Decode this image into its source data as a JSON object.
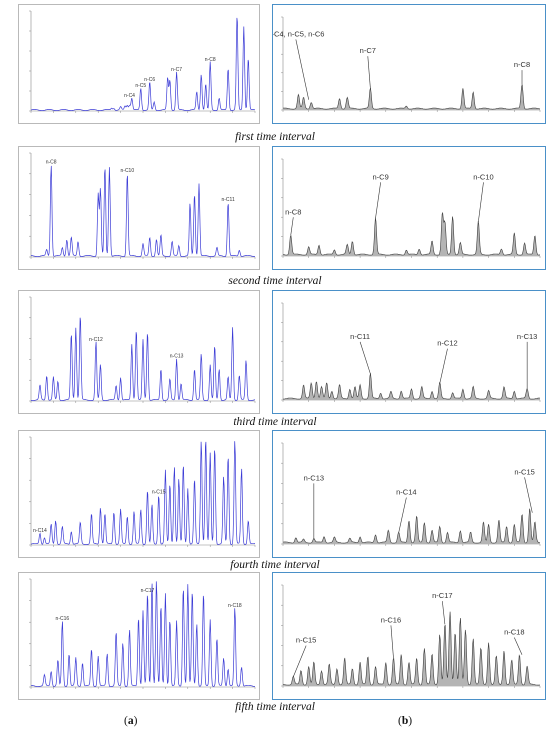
{
  "captions": [
    "first time interval",
    "second time interval",
    "third time interval",
    "fourth time interval",
    "fifth time interval"
  ],
  "panel_labels": {
    "left": "a",
    "right": "b"
  },
  "colors": {
    "left_trace": "#3b3bd6",
    "right_fill": "#b4b4b4",
    "right_line": "#3c3c3c",
    "right_border": "#4a90c8",
    "left_border": "#b9b9b9"
  },
  "chart_data": [
    {
      "type": "line",
      "column": "a",
      "interval": 1,
      "annotations": [
        "n-C4",
        "n-C5",
        "n-C6",
        "n-C7",
        "n-C8"
      ],
      "peaks": [
        [
          0.36,
          0.02
        ],
        [
          0.37,
          0.02
        ],
        [
          0.4,
          0.03
        ],
        [
          0.42,
          0.04
        ],
        [
          0.43,
          0.05
        ],
        [
          0.44,
          0.05
        ],
        [
          0.45,
          0.12
        ],
        [
          0.49,
          0.22
        ],
        [
          0.53,
          0.28
        ],
        [
          0.55,
          0.08
        ],
        [
          0.61,
          0.32
        ],
        [
          0.62,
          0.3
        ],
        [
          0.65,
          0.38
        ],
        [
          0.74,
          0.18
        ],
        [
          0.76,
          0.36
        ],
        [
          0.78,
          0.26
        ],
        [
          0.8,
          0.48
        ],
        [
          0.84,
          0.12
        ],
        [
          0.88,
          0.42
        ],
        [
          0.92,
          0.95
        ],
        [
          0.95,
          0.84
        ],
        [
          0.97,
          0.52
        ]
      ],
      "labels": [
        {
          "t": "n-C4",
          "x": 0.44,
          "y": 0.12
        },
        {
          "t": "n-C5",
          "x": 0.49,
          "y": 0.22
        },
        {
          "t": "n-C6",
          "x": 0.53,
          "y": 0.28
        },
        {
          "t": "n-C7",
          "x": 0.65,
          "y": 0.38
        },
        {
          "t": "n-C8",
          "x": 0.8,
          "y": 0.48
        }
      ]
    },
    {
      "type": "area",
      "column": "b",
      "interval": 1,
      "annotations": [
        "n-C4, n-C5, n-C6",
        "n-C7",
        "n-C8"
      ],
      "peaks": [
        [
          0.06,
          0.15
        ],
        [
          0.08,
          0.12
        ],
        [
          0.11,
          0.07
        ],
        [
          0.22,
          0.11
        ],
        [
          0.25,
          0.12
        ],
        [
          0.34,
          0.22
        ],
        [
          0.48,
          0.03
        ],
        [
          0.7,
          0.22
        ],
        [
          0.74,
          0.18
        ],
        [
          0.93,
          0.26
        ]
      ],
      "labels": [
        {
          "t": "n-C4, n-C5, n-C6",
          "x": 0.1,
          "y": 0.1,
          "tx": 0.05,
          "ty": 0.78
        },
        {
          "t": "n-C7",
          "x": 0.34,
          "y": 0.22,
          "tx": 0.33,
          "ty": 0.6
        },
        {
          "t": "n-C8",
          "x": 0.93,
          "y": 0.26,
          "tx": 0.93,
          "ty": 0.45
        }
      ]
    },
    {
      "type": "line",
      "column": "a",
      "interval": 2,
      "annotations": [
        "n-C8",
        "n-C10",
        "n-C11"
      ],
      "peaks": [
        [
          0.07,
          0.06
        ],
        [
          0.09,
          0.88
        ],
        [
          0.14,
          0.08
        ],
        [
          0.16,
          0.16
        ],
        [
          0.18,
          0.18
        ],
        [
          0.21,
          0.14
        ],
        [
          0.3,
          0.6
        ],
        [
          0.31,
          0.64
        ],
        [
          0.33,
          0.86
        ],
        [
          0.35,
          0.86
        ],
        [
          0.43,
          0.8
        ],
        [
          0.5,
          0.12
        ],
        [
          0.53,
          0.18
        ],
        [
          0.56,
          0.16
        ],
        [
          0.58,
          0.2
        ],
        [
          0.63,
          0.14
        ],
        [
          0.66,
          0.1
        ],
        [
          0.71,
          0.5
        ],
        [
          0.73,
          0.6
        ],
        [
          0.75,
          0.7
        ],
        [
          0.83,
          0.08
        ],
        [
          0.88,
          0.52
        ],
        [
          0.93,
          0.06
        ]
      ],
      "labels": [
        {
          "t": "n-C8",
          "x": 0.09,
          "y": 0.88
        },
        {
          "t": "n-C10",
          "x": 0.43,
          "y": 0.8
        },
        {
          "t": "n-C11",
          "x": 0.88,
          "y": 0.52
        }
      ]
    },
    {
      "type": "area",
      "column": "b",
      "interval": 2,
      "annotations": [
        "n-C8",
        "n-C9",
        "n-C10"
      ],
      "peaks": [
        [
          0.03,
          0.2
        ],
        [
          0.1,
          0.08
        ],
        [
          0.14,
          0.1
        ],
        [
          0.2,
          0.05
        ],
        [
          0.25,
          0.1
        ],
        [
          0.27,
          0.14
        ],
        [
          0.36,
          0.38
        ],
        [
          0.48,
          0.05
        ],
        [
          0.53,
          0.06
        ],
        [
          0.58,
          0.14
        ],
        [
          0.62,
          0.42
        ],
        [
          0.63,
          0.32
        ],
        [
          0.66,
          0.4
        ],
        [
          0.69,
          0.12
        ],
        [
          0.76,
          0.34
        ],
        [
          0.85,
          0.06
        ],
        [
          0.9,
          0.22
        ],
        [
          0.94,
          0.12
        ],
        [
          0.98,
          0.2
        ]
      ],
      "labels": [
        {
          "t": "n-C8",
          "x": 0.03,
          "y": 0.2,
          "tx": 0.04,
          "ty": 0.42
        },
        {
          "t": "n-C9",
          "x": 0.36,
          "y": 0.38,
          "tx": 0.38,
          "ty": 0.78
        },
        {
          "t": "n-C10",
          "x": 0.76,
          "y": 0.34,
          "tx": 0.78,
          "ty": 0.78
        }
      ]
    },
    {
      "type": "line",
      "column": "a",
      "interval": 3,
      "annotations": [
        "n-C12",
        "n-C13"
      ],
      "peaks": [
        [
          0.04,
          0.14
        ],
        [
          0.07,
          0.24
        ],
        [
          0.1,
          0.22
        ],
        [
          0.12,
          0.18
        ],
        [
          0.18,
          0.64
        ],
        [
          0.2,
          0.7
        ],
        [
          0.22,
          0.82
        ],
        [
          0.29,
          0.56
        ],
        [
          0.31,
          0.34
        ],
        [
          0.38,
          0.14
        ],
        [
          0.4,
          0.22
        ],
        [
          0.45,
          0.54
        ],
        [
          0.47,
          0.68
        ],
        [
          0.5,
          0.58
        ],
        [
          0.52,
          0.66
        ],
        [
          0.58,
          0.3
        ],
        [
          0.62,
          0.2
        ],
        [
          0.65,
          0.4
        ],
        [
          0.67,
          0.16
        ],
        [
          0.73,
          0.3
        ],
        [
          0.76,
          0.44
        ],
        [
          0.8,
          0.34
        ],
        [
          0.82,
          0.52
        ],
        [
          0.84,
          0.3
        ],
        [
          0.88,
          0.22
        ],
        [
          0.9,
          0.7
        ],
        [
          0.93,
          0.24
        ],
        [
          0.96,
          0.38
        ]
      ],
      "labels": [
        {
          "t": "n-C12",
          "x": 0.29,
          "y": 0.56
        },
        {
          "t": "n-C13",
          "x": 0.65,
          "y": 0.4
        }
      ]
    },
    {
      "type": "area",
      "column": "b",
      "interval": 3,
      "annotations": [
        "n-C11",
        "n-C12",
        "n-C13"
      ],
      "peaks": [
        [
          0.08,
          0.14
        ],
        [
          0.11,
          0.16
        ],
        [
          0.13,
          0.18
        ],
        [
          0.15,
          0.12
        ],
        [
          0.17,
          0.16
        ],
        [
          0.19,
          0.08
        ],
        [
          0.22,
          0.14
        ],
        [
          0.26,
          0.1
        ],
        [
          0.28,
          0.12
        ],
        [
          0.3,
          0.14
        ],
        [
          0.34,
          0.26
        ],
        [
          0.38,
          0.06
        ],
        [
          0.42,
          0.07
        ],
        [
          0.46,
          0.08
        ],
        [
          0.5,
          0.1
        ],
        [
          0.54,
          0.12
        ],
        [
          0.58,
          0.08
        ],
        [
          0.61,
          0.16
        ],
        [
          0.66,
          0.06
        ],
        [
          0.7,
          0.1
        ],
        [
          0.74,
          0.12
        ],
        [
          0.8,
          0.08
        ],
        [
          0.86,
          0.12
        ],
        [
          0.9,
          0.08
        ],
        [
          0.95,
          0.1
        ]
      ],
      "labels": [
        {
          "t": "n-C11",
          "x": 0.34,
          "y": 0.26,
          "tx": 0.3,
          "ty": 0.62
        },
        {
          "t": "n-C12",
          "x": 0.61,
          "y": 0.16,
          "tx": 0.64,
          "ty": 0.55
        },
        {
          "t": "n-C13",
          "x": 0.95,
          "y": 0.1,
          "tx": 0.95,
          "ty": 0.62
        }
      ]
    },
    {
      "type": "line",
      "column": "a",
      "interval": 4,
      "annotations": [
        "n-C14",
        "n-C15"
      ],
      "peaks": [
        [
          0.04,
          0.1
        ],
        [
          0.06,
          0.06
        ],
        [
          0.09,
          0.18
        ],
        [
          0.11,
          0.22
        ],
        [
          0.14,
          0.16
        ],
        [
          0.18,
          0.12
        ],
        [
          0.22,
          0.2
        ],
        [
          0.27,
          0.28
        ],
        [
          0.31,
          0.34
        ],
        [
          0.33,
          0.28
        ],
        [
          0.37,
          0.3
        ],
        [
          0.4,
          0.32
        ],
        [
          0.43,
          0.26
        ],
        [
          0.46,
          0.3
        ],
        [
          0.49,
          0.32
        ],
        [
          0.52,
          0.5
        ],
        [
          0.54,
          0.36
        ],
        [
          0.57,
          0.46
        ],
        [
          0.6,
          0.68
        ],
        [
          0.62,
          0.56
        ],
        [
          0.64,
          0.72
        ],
        [
          0.66,
          0.6
        ],
        [
          0.68,
          0.74
        ],
        [
          0.7,
          0.52
        ],
        [
          0.73,
          0.6
        ],
        [
          0.76,
          0.96
        ],
        [
          0.78,
          0.98
        ],
        [
          0.8,
          0.84
        ],
        [
          0.82,
          0.9
        ],
        [
          0.86,
          0.62
        ],
        [
          0.88,
          0.82
        ],
        [
          0.91,
          0.96
        ],
        [
          0.94,
          0.7
        ],
        [
          0.97,
          0.22
        ]
      ],
      "labels": [
        {
          "t": "n-C14",
          "x": 0.04,
          "y": 0.1
        },
        {
          "t": "n-C15",
          "x": 0.57,
          "y": 0.46
        }
      ]
    },
    {
      "type": "area",
      "column": "b",
      "interval": 4,
      "annotations": [
        "n-C13",
        "n-C14",
        "n-C15"
      ],
      "peaks": [
        [
          0.05,
          0.05
        ],
        [
          0.08,
          0.03
        ],
        [
          0.12,
          0.04
        ],
        [
          0.16,
          0.06
        ],
        [
          0.2,
          0.05
        ],
        [
          0.26,
          0.04
        ],
        [
          0.3,
          0.06
        ],
        [
          0.36,
          0.08
        ],
        [
          0.41,
          0.12
        ],
        [
          0.45,
          0.1
        ],
        [
          0.49,
          0.22
        ],
        [
          0.52,
          0.26
        ],
        [
          0.55,
          0.2
        ],
        [
          0.58,
          0.12
        ],
        [
          0.61,
          0.16
        ],
        [
          0.64,
          0.1
        ],
        [
          0.69,
          0.12
        ],
        [
          0.73,
          0.1
        ],
        [
          0.78,
          0.2
        ],
        [
          0.8,
          0.18
        ],
        [
          0.84,
          0.22
        ],
        [
          0.87,
          0.16
        ],
        [
          0.9,
          0.18
        ],
        [
          0.93,
          0.28
        ],
        [
          0.96,
          0.34
        ],
        [
          0.98,
          0.2
        ]
      ],
      "labels": [
        {
          "t": "n-C13",
          "x": 0.12,
          "y": 0.04,
          "tx": 0.12,
          "ty": 0.62
        },
        {
          "t": "n-C14",
          "x": 0.45,
          "y": 0.1,
          "tx": 0.48,
          "ty": 0.48
        },
        {
          "t": "n-C15",
          "x": 0.97,
          "y": 0.3,
          "tx": 0.94,
          "ty": 0.68
        }
      ]
    },
    {
      "type": "line",
      "column": "a",
      "interval": 5,
      "annotations": [
        "n-C16",
        "n-C17",
        "n-C18"
      ],
      "peaks": [
        [
          0.06,
          0.1
        ],
        [
          0.09,
          0.14
        ],
        [
          0.12,
          0.24
        ],
        [
          0.14,
          0.6
        ],
        [
          0.17,
          0.3
        ],
        [
          0.2,
          0.26
        ],
        [
          0.23,
          0.22
        ],
        [
          0.27,
          0.34
        ],
        [
          0.3,
          0.28
        ],
        [
          0.34,
          0.3
        ],
        [
          0.38,
          0.5
        ],
        [
          0.41,
          0.4
        ],
        [
          0.44,
          0.52
        ],
        [
          0.48,
          0.64
        ],
        [
          0.5,
          0.7
        ],
        [
          0.52,
          0.86
        ],
        [
          0.54,
          0.96
        ],
        [
          0.56,
          0.98
        ],
        [
          0.58,
          0.74
        ],
        [
          0.6,
          0.86
        ],
        [
          0.62,
          0.62
        ],
        [
          0.65,
          0.6
        ],
        [
          0.68,
          0.92
        ],
        [
          0.7,
          0.94
        ],
        [
          0.72,
          0.88
        ],
        [
          0.74,
          0.58
        ],
        [
          0.77,
          0.86
        ],
        [
          0.8,
          0.62
        ],
        [
          0.83,
          0.44
        ],
        [
          0.86,
          0.26
        ],
        [
          0.88,
          0.16
        ],
        [
          0.91,
          0.72
        ],
        [
          0.94,
          0.18
        ]
      ],
      "labels": [
        {
          "t": "n-C16",
          "x": 0.14,
          "y": 0.6
        },
        {
          "t": "n-C17",
          "x": 0.52,
          "y": 0.86
        },
        {
          "t": "n-C18",
          "x": 0.91,
          "y": 0.72
        }
      ]
    },
    {
      "type": "area",
      "column": "b",
      "interval": 5,
      "annotations": [
        "n-C15",
        "n-C16",
        "n-C17",
        "n-C18"
      ],
      "peaks": [
        [
          0.04,
          0.08
        ],
        [
          0.07,
          0.14
        ],
        [
          0.1,
          0.18
        ],
        [
          0.12,
          0.22
        ],
        [
          0.15,
          0.14
        ],
        [
          0.18,
          0.2
        ],
        [
          0.21,
          0.16
        ],
        [
          0.24,
          0.26
        ],
        [
          0.27,
          0.16
        ],
        [
          0.3,
          0.22
        ],
        [
          0.33,
          0.28
        ],
        [
          0.36,
          0.18
        ],
        [
          0.4,
          0.22
        ],
        [
          0.43,
          0.26
        ],
        [
          0.46,
          0.3
        ],
        [
          0.49,
          0.22
        ],
        [
          0.52,
          0.26
        ],
        [
          0.55,
          0.36
        ],
        [
          0.58,
          0.3
        ],
        [
          0.61,
          0.5
        ],
        [
          0.63,
          0.6
        ],
        [
          0.65,
          0.72
        ],
        [
          0.67,
          0.52
        ],
        [
          0.69,
          0.66
        ],
        [
          0.71,
          0.54
        ],
        [
          0.74,
          0.46
        ],
        [
          0.77,
          0.36
        ],
        [
          0.8,
          0.42
        ],
        [
          0.83,
          0.28
        ],
        [
          0.86,
          0.34
        ],
        [
          0.89,
          0.24
        ],
        [
          0.92,
          0.3
        ],
        [
          0.95,
          0.18
        ]
      ],
      "labels": [
        {
          "t": "n-C15",
          "x": 0.04,
          "y": 0.08,
          "tx": 0.09,
          "ty": 0.42
        },
        {
          "t": "n-C16",
          "x": 0.43,
          "y": 0.26,
          "tx": 0.42,
          "ty": 0.62
        },
        {
          "t": "n-C17",
          "x": 0.63,
          "y": 0.6,
          "tx": 0.62,
          "ty": 0.86
        },
        {
          "t": "n-C18",
          "x": 0.93,
          "y": 0.3,
          "tx": 0.9,
          "ty": 0.5
        }
      ]
    }
  ]
}
